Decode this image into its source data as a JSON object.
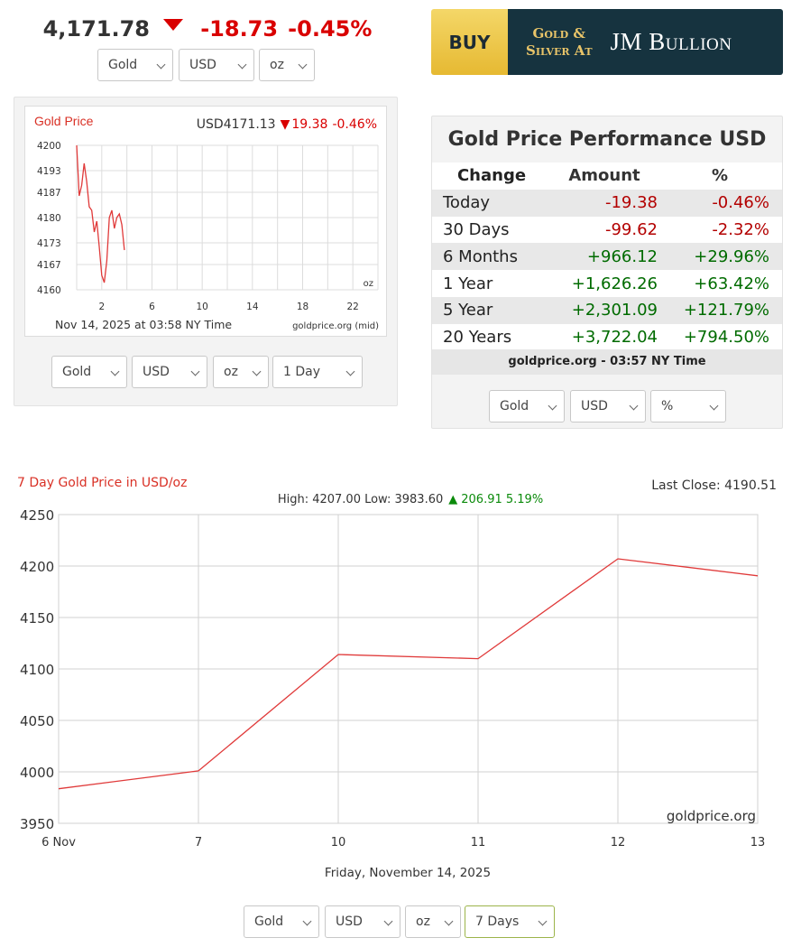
{
  "ticker": {
    "price": "4,171.78",
    "change": "-18.73",
    "percent": "-0.45%"
  },
  "selectors": {
    "top": [
      "Gold",
      "USD",
      "oz"
    ],
    "mini": [
      "Gold",
      "USD",
      "oz",
      "1 Day"
    ],
    "perf": [
      "Gold",
      "USD",
      "%"
    ],
    "big": [
      "Gold",
      "USD",
      "oz",
      "7 Days"
    ]
  },
  "banner": {
    "buy": "BUY",
    "line1": "Gold &",
    "line2": "Silver At",
    "brand": "JM Bullion"
  },
  "mini_chart": {
    "title": "Gold Price",
    "quote": "USD4171.13",
    "change": "19.38",
    "percent": "-0.46%",
    "unit": "oz",
    "timestamp": "Nov 14, 2025 at 03:58 NY Time",
    "source": "goldprice.org (mid)"
  },
  "performance": {
    "title": "Gold Price Performance USD",
    "headers": [
      "Change",
      "Amount",
      "%"
    ],
    "rows": [
      {
        "period": "Today",
        "amount": "-19.38",
        "percent": "-0.46%",
        "dir": "neg"
      },
      {
        "period": "30 Days",
        "amount": "-99.62",
        "percent": "-2.32%",
        "dir": "neg"
      },
      {
        "period": "6 Months",
        "amount": "+966.12",
        "percent": "+29.96%",
        "dir": "pos"
      },
      {
        "period": "1 Year",
        "amount": "+1,626.26",
        "percent": "+63.42%",
        "dir": "pos"
      },
      {
        "period": "5 Year",
        "amount": "+2,301.09",
        "percent": "+121.79%",
        "dir": "pos"
      },
      {
        "period": "20 Years",
        "amount": "+3,722.04",
        "percent": "+794.50%",
        "dir": "pos"
      }
    ],
    "footer": "goldprice.org - 03:57 NY Time"
  },
  "big_chart": {
    "title": "7 Day Gold Price in USD/oz",
    "last_close": "Last Close: 4190.51",
    "stats_text": "High: 4207.00 Low: 3983.60",
    "stats_change": "206.91 5.19%",
    "watermark": "goldprice.org",
    "date": "Friday, November 14, 2025"
  },
  "chart_data": [
    {
      "type": "line",
      "title": "Gold Price",
      "x": [
        0,
        0.2,
        0.4,
        0.6,
        0.8,
        1.0,
        1.2,
        1.4,
        1.6,
        1.8,
        2.0,
        2.2,
        2.4,
        2.6,
        2.8,
        3.0,
        3.2,
        3.4,
        3.6,
        3.8
      ],
      "values": [
        4200,
        4186,
        4189,
        4195,
        4190,
        4183,
        4182,
        4176,
        4179,
        4172,
        4164,
        4162,
        4168,
        4180,
        4182,
        4177,
        4180,
        4181,
        4178,
        4171
      ],
      "xticks": [
        2,
        6,
        10,
        14,
        18,
        22
      ],
      "yticks": [
        4160,
        4167,
        4173,
        4180,
        4187,
        4193,
        4200
      ],
      "xlim": [
        0,
        24
      ],
      "ylim": [
        4160,
        4200
      ],
      "grid": true
    },
    {
      "type": "line",
      "title": "7 Day Gold Price in USD/oz",
      "categories": [
        "6 Nov",
        "7",
        "10",
        "11",
        "12",
        "13"
      ],
      "x": [
        0,
        1,
        2,
        3,
        4,
        5
      ],
      "values": [
        3983.6,
        4001,
        4114,
        4110,
        4207,
        4190.51
      ],
      "yticks": [
        3950,
        4000,
        4050,
        4100,
        4150,
        4200,
        4250
      ],
      "ylim": [
        3950,
        4250
      ],
      "xlabel": "Friday, November 14, 2025",
      "grid": true
    }
  ]
}
